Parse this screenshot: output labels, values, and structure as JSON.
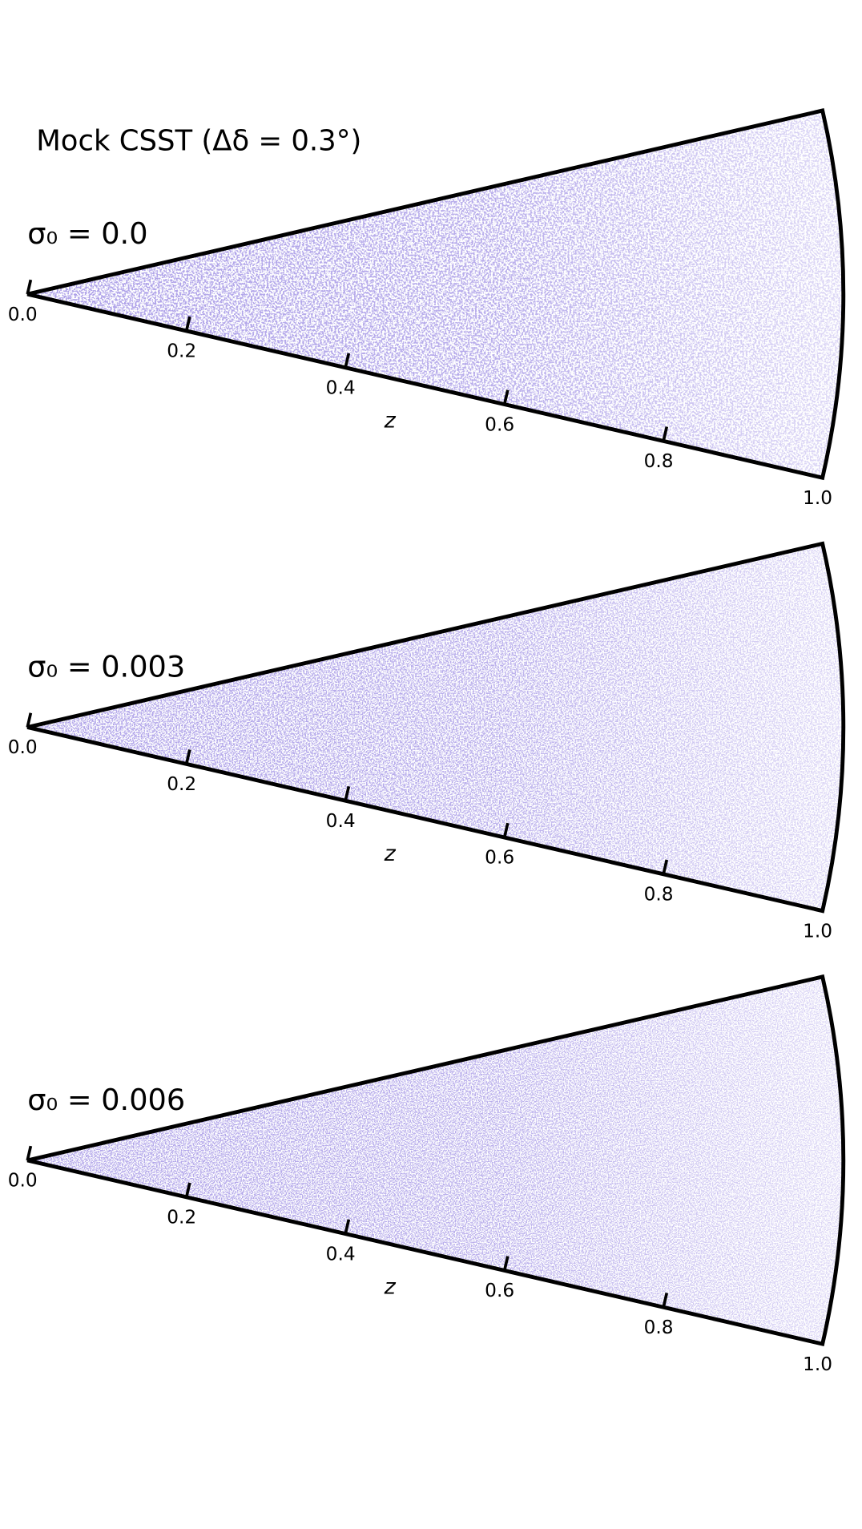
{
  "chart_data": [
    {
      "type": "wedge",
      "title": "Mock CSST (Δδ = 0.3°)",
      "annotation": "σ₀ = 0.0",
      "xlabel": "z",
      "xlim": [
        0,
        1
      ],
      "xticks": [
        {
          "value": 0,
          "label": "0.0"
        },
        {
          "value": 0.2,
          "label": "0.2"
        },
        {
          "value": 0.4,
          "label": "0.4"
        },
        {
          "value": 0.6,
          "label": "0.6"
        },
        {
          "value": 0.8,
          "label": "0.8"
        },
        {
          "value": 1,
          "label": "1.0"
        }
      ],
      "color": "#6a5acd"
    },
    {
      "type": "wedge",
      "annotation": "σ₀ = 0.003",
      "xlabel": "z",
      "xlim": [
        0,
        1
      ],
      "xticks": [
        {
          "value": 0,
          "label": "0.0"
        },
        {
          "value": 0.2,
          "label": "0.2"
        },
        {
          "value": 0.4,
          "label": "0.4"
        },
        {
          "value": 0.6,
          "label": "0.6"
        },
        {
          "value": 0.8,
          "label": "0.8"
        },
        {
          "value": 1,
          "label": "1.0"
        }
      ],
      "color": "#6a5acd"
    },
    {
      "type": "wedge",
      "annotation": "σ₀ = 0.006",
      "xlabel": "z",
      "xlim": [
        0,
        1
      ],
      "xticks": [
        {
          "value": 0,
          "label": "0.0"
        },
        {
          "value": 0.2,
          "label": "0.2"
        },
        {
          "value": 0.4,
          "label": "0.4"
        },
        {
          "value": 0.6,
          "label": "0.6"
        },
        {
          "value": 0.8,
          "label": "0.8"
        },
        {
          "value": 1,
          "label": "1.0"
        }
      ],
      "color": "#6a5acd"
    }
  ]
}
